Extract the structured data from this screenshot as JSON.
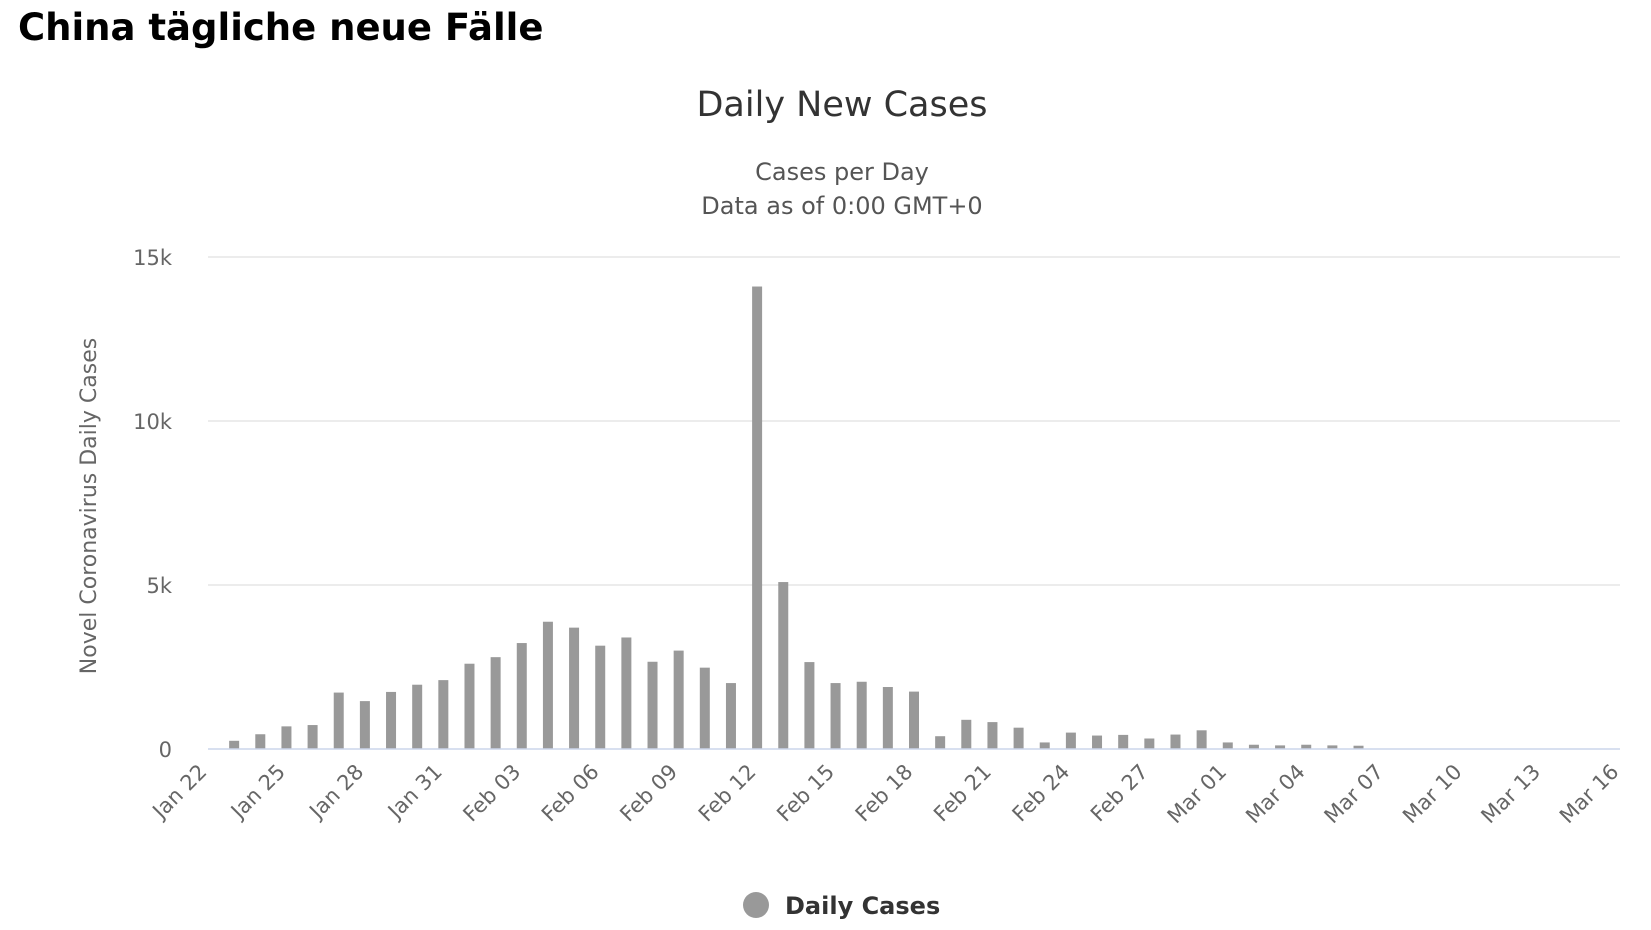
{
  "page": {
    "title": "China tägliche neue Fälle"
  },
  "chart_data": {
    "type": "bar",
    "title": "Daily New Cases",
    "subtitle_lines": [
      "Cases per Day",
      "Data as of 0:00 GMT+0"
    ],
    "xlabel": "",
    "ylabel": "Novel Coronavirus Daily Cases",
    "ylim": [
      0,
      15000
    ],
    "yticks": [
      0,
      5000,
      10000,
      15000
    ],
    "ytick_labels": [
      "0",
      "5k",
      "10k",
      "15k"
    ],
    "x_tick_labels": [
      "Jan 22",
      "Jan 25",
      "Jan 28",
      "Jan 31",
      "Feb 03",
      "Feb 06",
      "Feb 09",
      "Feb 12",
      "Feb 15",
      "Feb 18",
      "Feb 21",
      "Feb 24",
      "Feb 27",
      "Mar 01",
      "Mar 04",
      "Mar 07",
      "Mar 10",
      "Mar 13",
      "Mar 16"
    ],
    "categories": [
      "Jan 22",
      "Jan 23",
      "Jan 24",
      "Jan 25",
      "Jan 26",
      "Jan 27",
      "Jan 28",
      "Jan 29",
      "Jan 30",
      "Jan 31",
      "Feb 01",
      "Feb 02",
      "Feb 03",
      "Feb 04",
      "Feb 05",
      "Feb 06",
      "Feb 07",
      "Feb 08",
      "Feb 09",
      "Feb 10",
      "Feb 11",
      "Feb 12",
      "Feb 13",
      "Feb 14",
      "Feb 15",
      "Feb 16",
      "Feb 17",
      "Feb 18",
      "Feb 19",
      "Feb 20",
      "Feb 21",
      "Feb 22",
      "Feb 23",
      "Feb 24",
      "Feb 25",
      "Feb 26",
      "Feb 27",
      "Feb 28",
      "Feb 29",
      "Mar 01",
      "Mar 02",
      "Mar 03",
      "Mar 04",
      "Mar 05",
      "Mar 06",
      "Mar 07",
      "Mar 08",
      "Mar 09",
      "Mar 10",
      "Mar 11",
      "Mar 12",
      "Mar 13",
      "Mar 14",
      "Mar 15",
      "Mar 16"
    ],
    "series": [
      {
        "name": "Daily Cases",
        "color": "#999999",
        "values": [
          0,
          250,
          450,
          690,
          730,
          1720,
          1460,
          1740,
          1960,
          2100,
          2600,
          2800,
          3230,
          3880,
          3700,
          3150,
          3400,
          2660,
          3000,
          2480,
          2010,
          14100,
          5090,
          2650,
          2010,
          2050,
          1890,
          1750,
          390,
          890,
          820,
          650,
          200,
          500,
          410,
          430,
          320,
          440,
          570,
          200,
          130,
          110,
          130,
          110,
          100,
          0,
          0,
          0,
          0,
          0,
          0,
          0,
          0,
          0,
          0
        ]
      }
    ],
    "grid": true,
    "legend_position": "bottom-center"
  }
}
